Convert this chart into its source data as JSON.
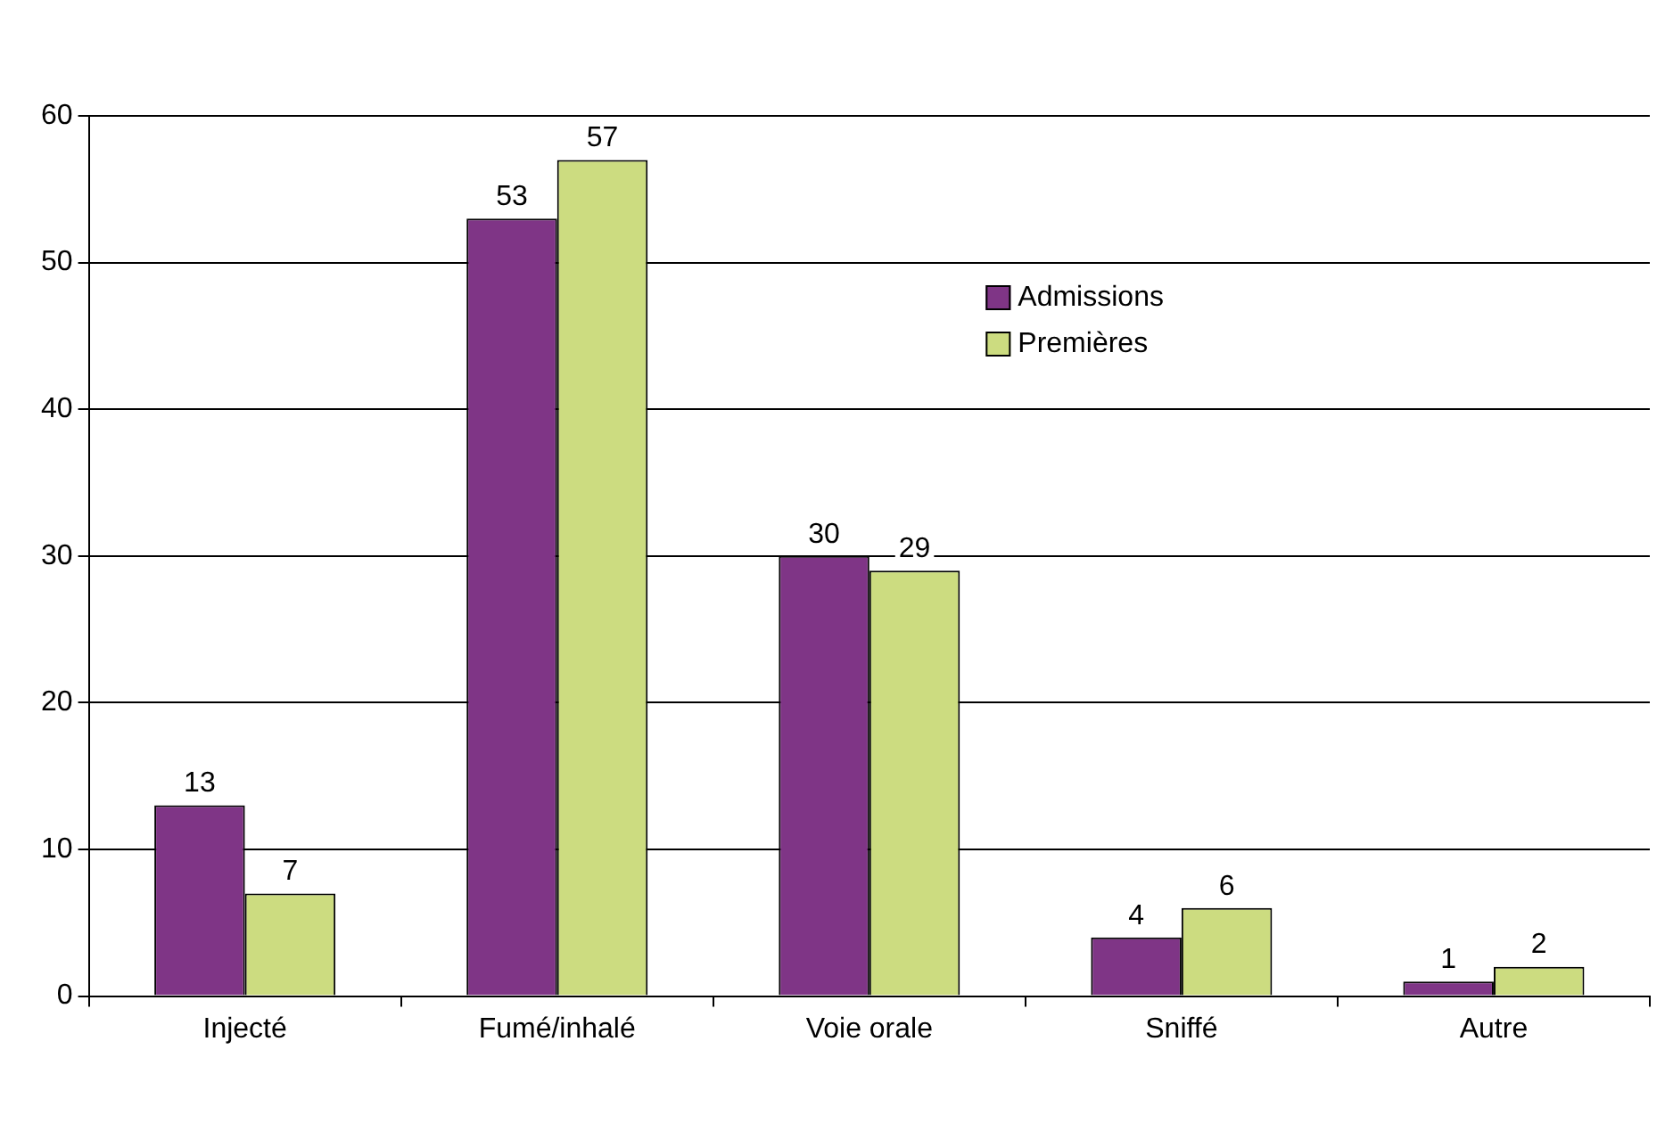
{
  "chart_data": {
    "type": "bar",
    "categories": [
      "Injecté",
      "Fumé/inhalé",
      "Voie orale",
      "Sniffé",
      "Autre"
    ],
    "series": [
      {
        "name": "Admissions",
        "color": "#7f3586",
        "values": [
          13,
          53,
          30,
          4,
          1
        ]
      },
      {
        "name": "Premières",
        "color": "#ccdc80",
        "values": [
          7,
          57,
          29,
          6,
          2
        ]
      }
    ],
    "ylim": [
      0,
      60
    ],
    "yticks": [
      0,
      10,
      20,
      30,
      40,
      50,
      60
    ],
    "grid": "y",
    "legend": "top",
    "data_labels": true
  }
}
